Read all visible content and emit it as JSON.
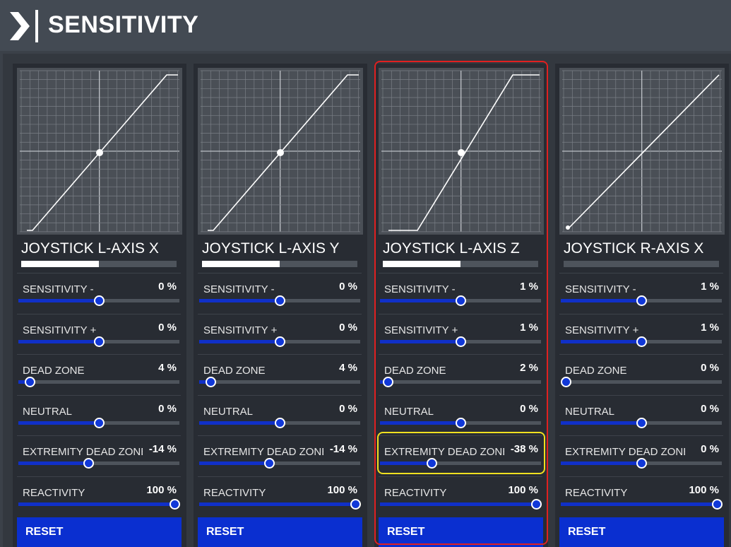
{
  "header": {
    "title": "SENSITIVITY"
  },
  "panels": [
    {
      "name": "JOYSTICK L-AXIS X",
      "axis_position": 0.5,
      "settings": [
        {
          "label": "SENSITIVITY -",
          "value": "0 %",
          "level": 0.5
        },
        {
          "label": "SENSITIVITY +",
          "value": "0 %",
          "level": 0.5
        },
        {
          "label": "DEAD ZONE",
          "value": "4 %",
          "level": 0.04
        },
        {
          "label": "NEUTRAL",
          "value": "0 %",
          "level": 0.5
        },
        {
          "label": "EXTREMITY DEAD ZONE",
          "value": "-14 %",
          "level": 0.43
        },
        {
          "label": "REACTIVITY",
          "value": "100 %",
          "level": 1.0
        }
      ],
      "reset_label": "RESET"
    },
    {
      "name": "JOYSTICK L-AXIS Y",
      "axis_position": 0.5,
      "settings": [
        {
          "label": "SENSITIVITY -",
          "value": "0 %",
          "level": 0.5
        },
        {
          "label": "SENSITIVITY +",
          "value": "0 %",
          "level": 0.5
        },
        {
          "label": "DEAD ZONE",
          "value": "4 %",
          "level": 0.04
        },
        {
          "label": "NEUTRAL",
          "value": "0 %",
          "level": 0.5
        },
        {
          "label": "EXTREMITY DEAD ZONE",
          "value": "-14 %",
          "level": 0.43
        },
        {
          "label": "REACTIVITY",
          "value": "100 %",
          "level": 1.0
        }
      ],
      "reset_label": "RESET"
    },
    {
      "name": "JOYSTICK L-AXIS Z",
      "axis_position": 0.5,
      "settings": [
        {
          "label": "SENSITIVITY -",
          "value": "1 %",
          "level": 0.5
        },
        {
          "label": "SENSITIVITY +",
          "value": "1 %",
          "level": 0.5
        },
        {
          "label": "DEAD ZONE",
          "value": "2 %",
          "level": 0.02
        },
        {
          "label": "NEUTRAL",
          "value": "0 %",
          "level": 0.5
        },
        {
          "label": "EXTREMITY DEAD ZONE",
          "value": "-38 %",
          "level": 0.31
        },
        {
          "label": "REACTIVITY",
          "value": "100 %",
          "level": 1.0
        }
      ],
      "reset_label": "RESET"
    },
    {
      "name": "JOYSTICK R-AXIS X",
      "axis_position": 0.0,
      "settings": [
        {
          "label": "SENSITIVITY -",
          "value": "1 %",
          "level": 0.5
        },
        {
          "label": "SENSITIVITY +",
          "value": "1 %",
          "level": 0.5
        },
        {
          "label": "DEAD ZONE",
          "value": "0 %",
          "level": 0.0
        },
        {
          "label": "NEUTRAL",
          "value": "0 %",
          "level": 0.5
        },
        {
          "label": "EXTREMITY DEAD ZONE",
          "value": "0 %",
          "level": 0.5
        },
        {
          "label": "REACTIVITY",
          "value": "100 %",
          "level": 1.0
        }
      ],
      "reset_label": "RESET"
    }
  ],
  "colors": {
    "accent": "#0a2fd0",
    "slider_fill": "#1030c8",
    "highlight_panel": "#e02020",
    "highlight_setting": "#f0e020"
  }
}
